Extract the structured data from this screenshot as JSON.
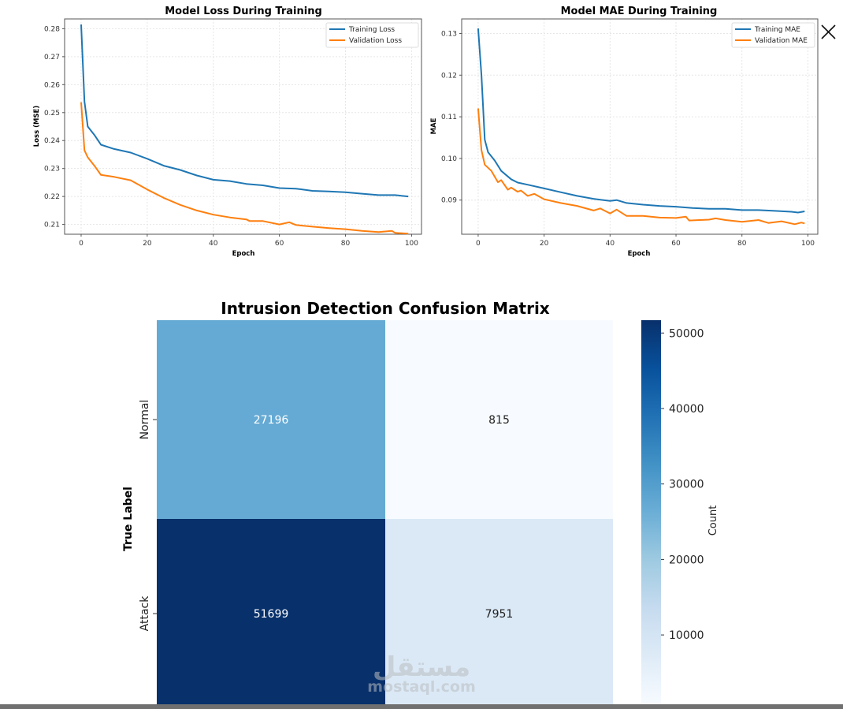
{
  "chart_data": [
    {
      "type": "line",
      "title": "Model Loss During Training",
      "xlabel": "Epoch",
      "ylabel": "Loss (MSE)",
      "xlim": [
        -5,
        103
      ],
      "ylim": [
        0.2065,
        0.2835
      ],
      "xticks": [
        "0",
        "20",
        "40",
        "60",
        "80",
        "100"
      ],
      "yticks": [
        "0.21",
        "0.22",
        "0.23",
        "0.24",
        "0.25",
        "0.26",
        "0.27",
        "0.28"
      ],
      "grid": true,
      "legend": "top-right",
      "series": [
        {
          "name": "Training Loss",
          "color": "#1f77b4",
          "x": [
            0,
            1,
            2,
            4,
            6,
            10,
            15,
            20,
            25,
            30,
            35,
            40,
            45,
            50,
            55,
            60,
            65,
            70,
            75,
            80,
            85,
            90,
            95,
            99
          ],
          "y": [
            0.2815,
            0.254,
            0.245,
            0.242,
            0.2385,
            0.237,
            0.2357,
            0.2335,
            0.231,
            0.2295,
            0.2275,
            0.226,
            0.2255,
            0.2245,
            0.224,
            0.223,
            0.2228,
            0.222,
            0.2218,
            0.2215,
            0.221,
            0.2205,
            0.2205,
            0.22
          ]
        },
        {
          "name": "Validation Loss",
          "color": "#ff7f0e",
          "x": [
            0,
            1,
            2,
            4,
            6,
            10,
            15,
            20,
            25,
            30,
            35,
            40,
            45,
            50,
            51,
            55,
            60,
            63,
            65,
            70,
            75,
            80,
            85,
            90,
            94,
            95,
            99
          ],
          "y": [
            0.2537,
            0.2365,
            0.234,
            0.231,
            0.2277,
            0.227,
            0.2258,
            0.2225,
            0.2195,
            0.217,
            0.215,
            0.2135,
            0.2125,
            0.2118,
            0.2112,
            0.2112,
            0.21,
            0.2108,
            0.2098,
            0.2092,
            0.2087,
            0.2083,
            0.2077,
            0.2073,
            0.2077,
            0.207,
            0.2067
          ]
        }
      ]
    },
    {
      "type": "line",
      "title": "Model MAE During Training",
      "xlabel": "Epoch",
      "ylabel": "MAE",
      "xlim": [
        -5,
        103
      ],
      "ylim": [
        0.0818,
        0.1335
      ],
      "xticks": [
        "0",
        "20",
        "40",
        "60",
        "80",
        "100"
      ],
      "yticks": [
        "0.09",
        "0.10",
        "0.11",
        "0.12",
        "0.13"
      ],
      "grid": true,
      "legend": "top-right",
      "series": [
        {
          "name": "Training MAE",
          "color": "#1f77b4",
          "x": [
            0,
            1,
            2,
            3,
            5,
            7,
            10,
            12,
            15,
            20,
            25,
            30,
            35,
            40,
            42,
            45,
            50,
            55,
            60,
            65,
            70,
            75,
            80,
            85,
            90,
            95,
            97,
            99
          ],
          "y": [
            0.1312,
            0.12,
            0.1045,
            0.1015,
            0.0995,
            0.097,
            0.095,
            0.0942,
            0.0937,
            0.0928,
            0.0919,
            0.091,
            0.0903,
            0.0898,
            0.09,
            0.0893,
            0.0889,
            0.0886,
            0.0884,
            0.0881,
            0.0879,
            0.0879,
            0.0876,
            0.0876,
            0.0874,
            0.0872,
            0.087,
            0.0873
          ]
        },
        {
          "name": "Validation MAE",
          "color": "#ff7f0e",
          "x": [
            0,
            1,
            2,
            4,
            6,
            7,
            9,
            10,
            12,
            13,
            15,
            17,
            20,
            25,
            30,
            35,
            37,
            40,
            42,
            45,
            50,
            55,
            60,
            63,
            64,
            70,
            72,
            75,
            80,
            85,
            88,
            92,
            96,
            98,
            99
          ],
          "y": [
            0.112,
            0.102,
            0.0985,
            0.097,
            0.0943,
            0.0948,
            0.0925,
            0.093,
            0.092,
            0.0923,
            0.091,
            0.0915,
            0.0902,
            0.0893,
            0.0886,
            0.0875,
            0.088,
            0.0868,
            0.0877,
            0.0862,
            0.0862,
            0.0858,
            0.0857,
            0.086,
            0.0851,
            0.0853,
            0.0856,
            0.0852,
            0.0848,
            0.0852,
            0.0845,
            0.0849,
            0.0842,
            0.0846,
            0.0844
          ]
        }
      ]
    },
    {
      "type": "heatmap",
      "title": "Intrusion Detection Confusion Matrix",
      "ylabel": "True Label",
      "row_labels": [
        "Normal",
        "Attack"
      ],
      "values": [
        [
          27196,
          815
        ],
        [
          51699,
          7951
        ]
      ],
      "value_labels": [
        [
          "27196",
          "815"
        ],
        [
          "51699",
          "7951"
        ]
      ],
      "colormap": "Blues",
      "colorbar": {
        "label": "Count",
        "ticks": [
          "10000",
          "20000",
          "30000",
          "40000",
          "50000"
        ],
        "range": [
          815,
          51699
        ]
      }
    }
  ],
  "watermark": {
    "text_arabic": "مستقل",
    "text_latin": "mostaql.com"
  },
  "close_icon": "close-icon"
}
